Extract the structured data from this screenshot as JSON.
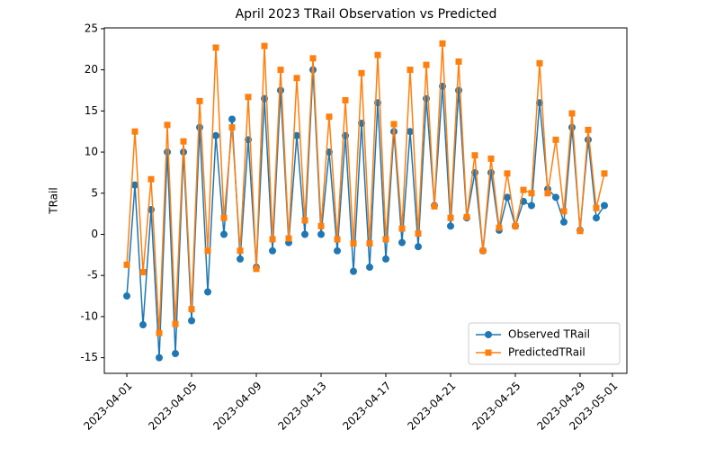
{
  "chart_data": {
    "type": "line",
    "title": "April 2023 TRail Observation vs Predicted",
    "y_label": "TRail",
    "x": [
      "2023-04-01T00:00",
      "2023-04-01T12:00",
      "2023-04-02T00:00",
      "2023-04-02T12:00",
      "2023-04-03T00:00",
      "2023-04-03T12:00",
      "2023-04-04T00:00",
      "2023-04-04T12:00",
      "2023-04-05T00:00",
      "2023-04-05T12:00",
      "2023-04-06T00:00",
      "2023-04-06T12:00",
      "2023-04-07T00:00",
      "2023-04-07T12:00",
      "2023-04-08T00:00",
      "2023-04-08T12:00",
      "2023-04-09T00:00",
      "2023-04-09T12:00",
      "2023-04-10T00:00",
      "2023-04-10T12:00",
      "2023-04-11T00:00",
      "2023-04-11T12:00",
      "2023-04-12T00:00",
      "2023-04-12T12:00",
      "2023-04-13T00:00",
      "2023-04-13T12:00",
      "2023-04-14T00:00",
      "2023-04-14T12:00",
      "2023-04-15T00:00",
      "2023-04-15T12:00",
      "2023-04-16T00:00",
      "2023-04-16T12:00",
      "2023-04-17T00:00",
      "2023-04-17T12:00",
      "2023-04-18T00:00",
      "2023-04-18T12:00",
      "2023-04-19T00:00",
      "2023-04-19T12:00",
      "2023-04-20T00:00",
      "2023-04-20T12:00",
      "2023-04-21T00:00",
      "2023-04-21T12:00",
      "2023-04-22T00:00",
      "2023-04-22T12:00",
      "2023-04-23T00:00",
      "2023-04-23T12:00",
      "2023-04-24T00:00",
      "2023-04-24T12:00",
      "2023-04-25T00:00",
      "2023-04-25T12:00",
      "2023-04-26T00:00",
      "2023-04-26T12:00",
      "2023-04-27T00:00",
      "2023-04-27T12:00",
      "2023-04-28T00:00",
      "2023-04-28T12:00",
      "2023-04-29T00:00",
      "2023-04-29T12:00",
      "2023-04-30T00:00",
      "2023-04-30T12:00"
    ],
    "series": [
      {
        "name": "Observed TRail",
        "color": "#1f77b4",
        "marker": "circle",
        "values": [
          -7.5,
          6,
          -11,
          3,
          -15,
          10,
          -14.5,
          10,
          -10.5,
          13,
          -7,
          12,
          0,
          14,
          -3,
          11.5,
          -4,
          16.5,
          -2,
          17.5,
          -1,
          12,
          0,
          20,
          0,
          10,
          -2,
          12,
          -4.5,
          13.5,
          -4,
          16,
          -3,
          12.5,
          -1,
          12.5,
          -1.5,
          16.5,
          3.5,
          18,
          1,
          17.5,
          2,
          7.5,
          -2,
          7.5,
          0.5,
          4.5,
          1,
          4,
          3.5,
          16,
          5.5,
          4.5,
          1.5,
          13,
          0.5,
          11.5,
          2,
          3.5
        ]
      },
      {
        "name": "PredictedTRail",
        "color": "#ff7f0e",
        "marker": "square",
        "values": [
          -3.7,
          12.5,
          -4.6,
          6.7,
          -12,
          13.3,
          -10.9,
          11.3,
          -9.1,
          16.2,
          -2,
          22.7,
          2,
          13,
          -2,
          16.7,
          -4.2,
          22.9,
          -0.6,
          20,
          -0.5,
          19,
          1.7,
          21.4,
          1,
          14.3,
          -0.6,
          16.3,
          -1.1,
          19.6,
          -1.1,
          21.8,
          -0.6,
          13.4,
          0.7,
          20,
          0.1,
          20.6,
          3.4,
          23.2,
          2,
          21,
          2.1,
          9.6,
          -2,
          9.2,
          0.8,
          7.4,
          1,
          5.4,
          5,
          20.8,
          5,
          11.5,
          2.8,
          14.7,
          0.4,
          12.7,
          3.2,
          7.4
        ]
      }
    ],
    "xlim": [
      "2023-03-30T14:38",
      "2023-05-01T21:22"
    ],
    "xticks": [
      "2023-04-01",
      "2023-04-05",
      "2023-04-09",
      "2023-04-13",
      "2023-04-17",
      "2023-04-21",
      "2023-04-25",
      "2023-04-29",
      "2023-05-01"
    ],
    "ylim": [
      -16.9,
      25.1
    ],
    "yticks": [
      -15,
      -10,
      -5,
      0,
      5,
      10,
      15,
      20,
      25
    ],
    "legend": "lower right"
  }
}
